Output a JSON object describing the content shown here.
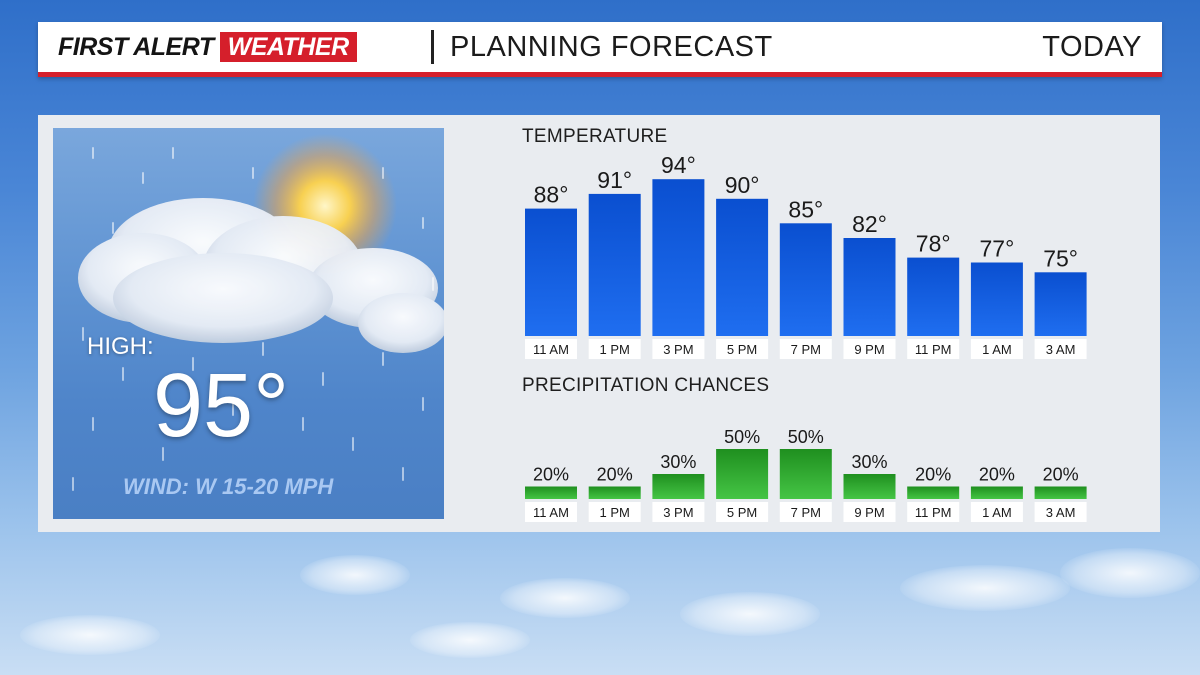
{
  "header": {
    "brand_first": "FIRST ALERT",
    "brand_weather": "WEATHER",
    "title": "PLANNING FORECAST",
    "period": "TODAY"
  },
  "left_card": {
    "high_label": "HIGH:",
    "high_value": "95°",
    "wind": "WIND: W 15-20 MPH"
  },
  "chart_data": [
    {
      "type": "bar",
      "title": "TEMPERATURE",
      "categories": [
        "11 AM",
        "1 PM",
        "3 PM",
        "5 PM",
        "7 PM",
        "9 PM",
        "11 PM",
        "1 AM",
        "3 AM"
      ],
      "values": [
        88,
        91,
        94,
        90,
        85,
        82,
        78,
        77,
        75
      ],
      "value_labels": [
        "88°",
        "91°",
        "94°",
        "90°",
        "85°",
        "82°",
        "78°",
        "77°",
        "75°"
      ],
      "color": "#1a63e6"
    },
    {
      "type": "bar",
      "title": "PRECIPITATION CHANCES",
      "categories": [
        "11 AM",
        "1 PM",
        "3 PM",
        "5 PM",
        "7 PM",
        "9 PM",
        "11 PM",
        "1 AM",
        "3 AM"
      ],
      "values": [
        20,
        20,
        30,
        50,
        50,
        30,
        20,
        20,
        20
      ],
      "value_labels": [
        "20%",
        "20%",
        "30%",
        "50%",
        "50%",
        "30%",
        "20%",
        "20%",
        "20%"
      ],
      "color": "#2fa82f"
    }
  ]
}
